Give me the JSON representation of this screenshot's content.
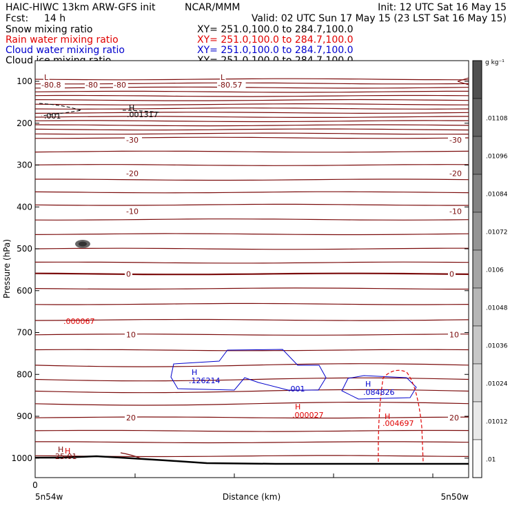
{
  "header": {
    "title_left": "HAIC-HIWC 13km ARW-GFS init",
    "institution": "NCAR/MMM",
    "init": "Init: 12 UTC Sat 16 May 15",
    "fcst_label": "Fcst:",
    "fcst_value": "14 h",
    "valid": "Valid: 02 UTC Sun 17 May 15 (23 LST Sat 16 May 15)"
  },
  "legend": [
    {
      "name": "Snow mixing ratio",
      "xy": "XY= 251.0,100.0 to 284.7,100.0",
      "color": "#000000"
    },
    {
      "name": "Rain water mixing ratio",
      "xy": "XY= 251.0,100.0 to 284.7,100.0",
      "color": "#e00000"
    },
    {
      "name": "Cloud water mixing ratio",
      "xy": "XY= 251.0,100.0 to 284.7,100.0",
      "color": "#0000cc"
    },
    {
      "name": "Cloud ice mixing ratio",
      "xy": "XY= 251.0,100.0 to 284.7,100.0",
      "color": "#000000"
    }
  ],
  "colors": {
    "temperature": "#7a0a0a",
    "rain": "#e00000",
    "cloud_water": "#0000cc",
    "snow": "#000000",
    "terrain": "#000000"
  },
  "chart_data": {
    "type": "contour-cross-section",
    "ylabel": "Pressure (hPa)",
    "xlabel": "Distance (km)",
    "x_start_label": "5n54w",
    "x_end_label": "5n50w",
    "x_tick_first": "0",
    "yticks": [
      "100",
      "200",
      "300",
      "400",
      "500",
      "600",
      "700",
      "800",
      "900",
      "1000"
    ],
    "ylim": [
      1050,
      60
    ],
    "colorbar": {
      "unit": "g kg⁻¹",
      "labels": [
        ".01",
        ".01012",
        ".01024",
        ".01036",
        ".01048",
        ".0106",
        ".01072",
        ".01084",
        ".01096",
        ".01108"
      ]
    },
    "temperature_contour_labels": [
      {
        "text": "-30",
        "p": 240
      },
      {
        "text": "-20",
        "p": 320
      },
      {
        "text": "-10",
        "p": 410
      },
      {
        "text": "0",
        "p": 560
      },
      {
        "text": "10",
        "p": 705
      },
      {
        "text": "20",
        "p": 903
      }
    ],
    "top_labels": [
      {
        "text": "L",
        "color": "temperature"
      },
      {
        "text": "-80.8",
        "color": "temperature"
      },
      {
        "text": "-80",
        "color": "temperature"
      },
      {
        "text": "-80",
        "color": "temperature"
      },
      {
        "text": "L",
        "color": "temperature"
      },
      {
        "text": "-80.57",
        "color": "temperature"
      }
    ],
    "annotations": [
      {
        "text": ".001",
        "color": "snow"
      },
      {
        "text": "H",
        "color": "snow"
      },
      {
        "text": ".001317",
        "color": "snow"
      },
      {
        "text": "H",
        "color": "rain"
      },
      {
        "text": ".000067",
        "color": "rain"
      },
      {
        "text": "H",
        "color": "cloud_water"
      },
      {
        "text": ".126214",
        "color": "cloud_water"
      },
      {
        "text": ".001",
        "color": "cloud_water"
      },
      {
        "text": "H",
        "color": "cloud_water"
      },
      {
        "text": ".084826",
        "color": "cloud_water"
      },
      {
        "text": "H",
        "color": "rain"
      },
      {
        "text": ".000027",
        "color": "rain"
      },
      {
        "text": "H",
        "color": "rain"
      },
      {
        "text": ".004697",
        "color": "rain"
      },
      {
        "text": "H",
        "color": "temperature"
      },
      {
        "text": "25.01",
        "color": "temperature"
      }
    ]
  }
}
